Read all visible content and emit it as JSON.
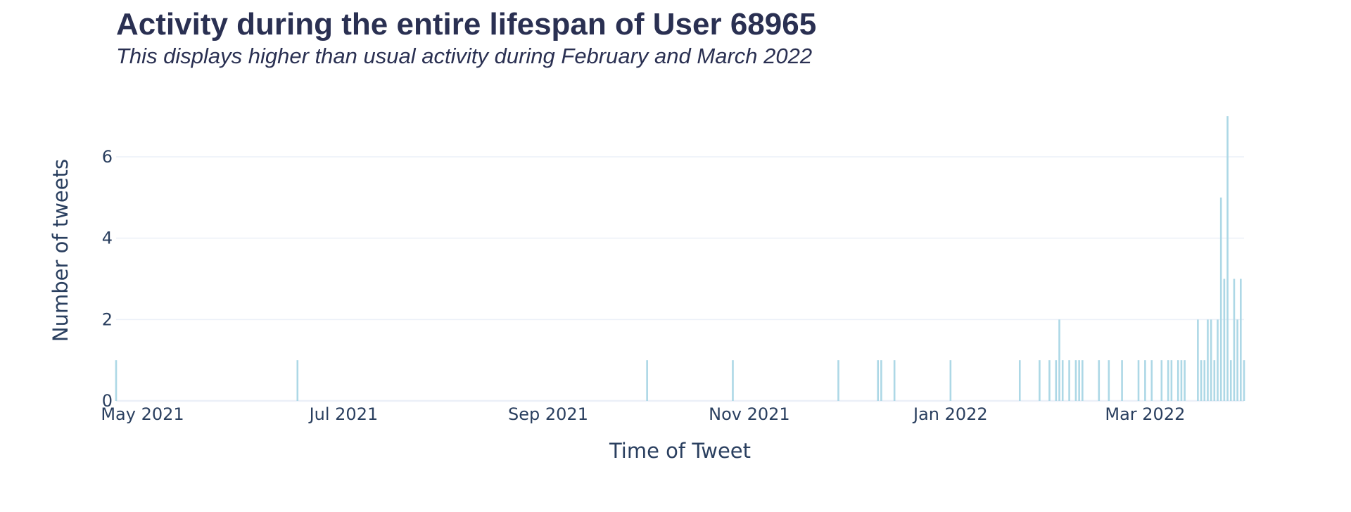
{
  "chart_data": {
    "type": "bar",
    "title": "Activity during the entire lifespan of User 68965",
    "subtitle": "This displays higher than usual activity during February and March 2022",
    "xlabel": "Time of Tweet",
    "ylabel": "Number of tweets",
    "xlim": [
      "2021-04-23",
      "2022-03-31"
    ],
    "ylim": [
      0,
      7.4
    ],
    "grid": true,
    "bar_color": "#add8e6",
    "y_ticks": [
      0,
      2,
      4,
      6
    ],
    "x_ticks": [
      {
        "date": "2021-05-01",
        "label": "May 2021"
      },
      {
        "date": "2021-07-01",
        "label": "Jul 2021"
      },
      {
        "date": "2021-09-01",
        "label": "Sep 2021"
      },
      {
        "date": "2021-11-01",
        "label": "Nov 2021"
      },
      {
        "date": "2022-01-01",
        "label": "Jan 2022"
      },
      {
        "date": "2022-03-01",
        "label": "Mar 2022"
      }
    ],
    "x": [
      "2021-04-23",
      "2021-06-17",
      "2021-10-01",
      "2021-10-27",
      "2021-11-28",
      "2021-12-10",
      "2021-12-11",
      "2021-12-15",
      "2022-01-01",
      "2022-01-22",
      "2022-01-28",
      "2022-01-31",
      "2022-02-02",
      "2022-02-03",
      "2022-02-04",
      "2022-02-06",
      "2022-02-08",
      "2022-02-09",
      "2022-02-10",
      "2022-02-15",
      "2022-02-18",
      "2022-02-22",
      "2022-02-27",
      "2022-03-01",
      "2022-03-03",
      "2022-03-06",
      "2022-03-08",
      "2022-03-09",
      "2022-03-11",
      "2022-03-12",
      "2022-03-13",
      "2022-03-17",
      "2022-03-18",
      "2022-03-19",
      "2022-03-20",
      "2022-03-21",
      "2022-03-22",
      "2022-03-23",
      "2022-03-24",
      "2022-03-25",
      "2022-03-26",
      "2022-03-27",
      "2022-03-28",
      "2022-03-29",
      "2022-03-30",
      "2022-03-31"
    ],
    "values": [
      1,
      1,
      1,
      1,
      1,
      1,
      1,
      1,
      1,
      1,
      1,
      1,
      1,
      2,
      1,
      1,
      1,
      1,
      1,
      1,
      1,
      1,
      1,
      1,
      1,
      1,
      1,
      1,
      1,
      1,
      1,
      2,
      1,
      1,
      2,
      2,
      1,
      2,
      5,
      3,
      7,
      1,
      3,
      2,
      3,
      1
    ]
  }
}
